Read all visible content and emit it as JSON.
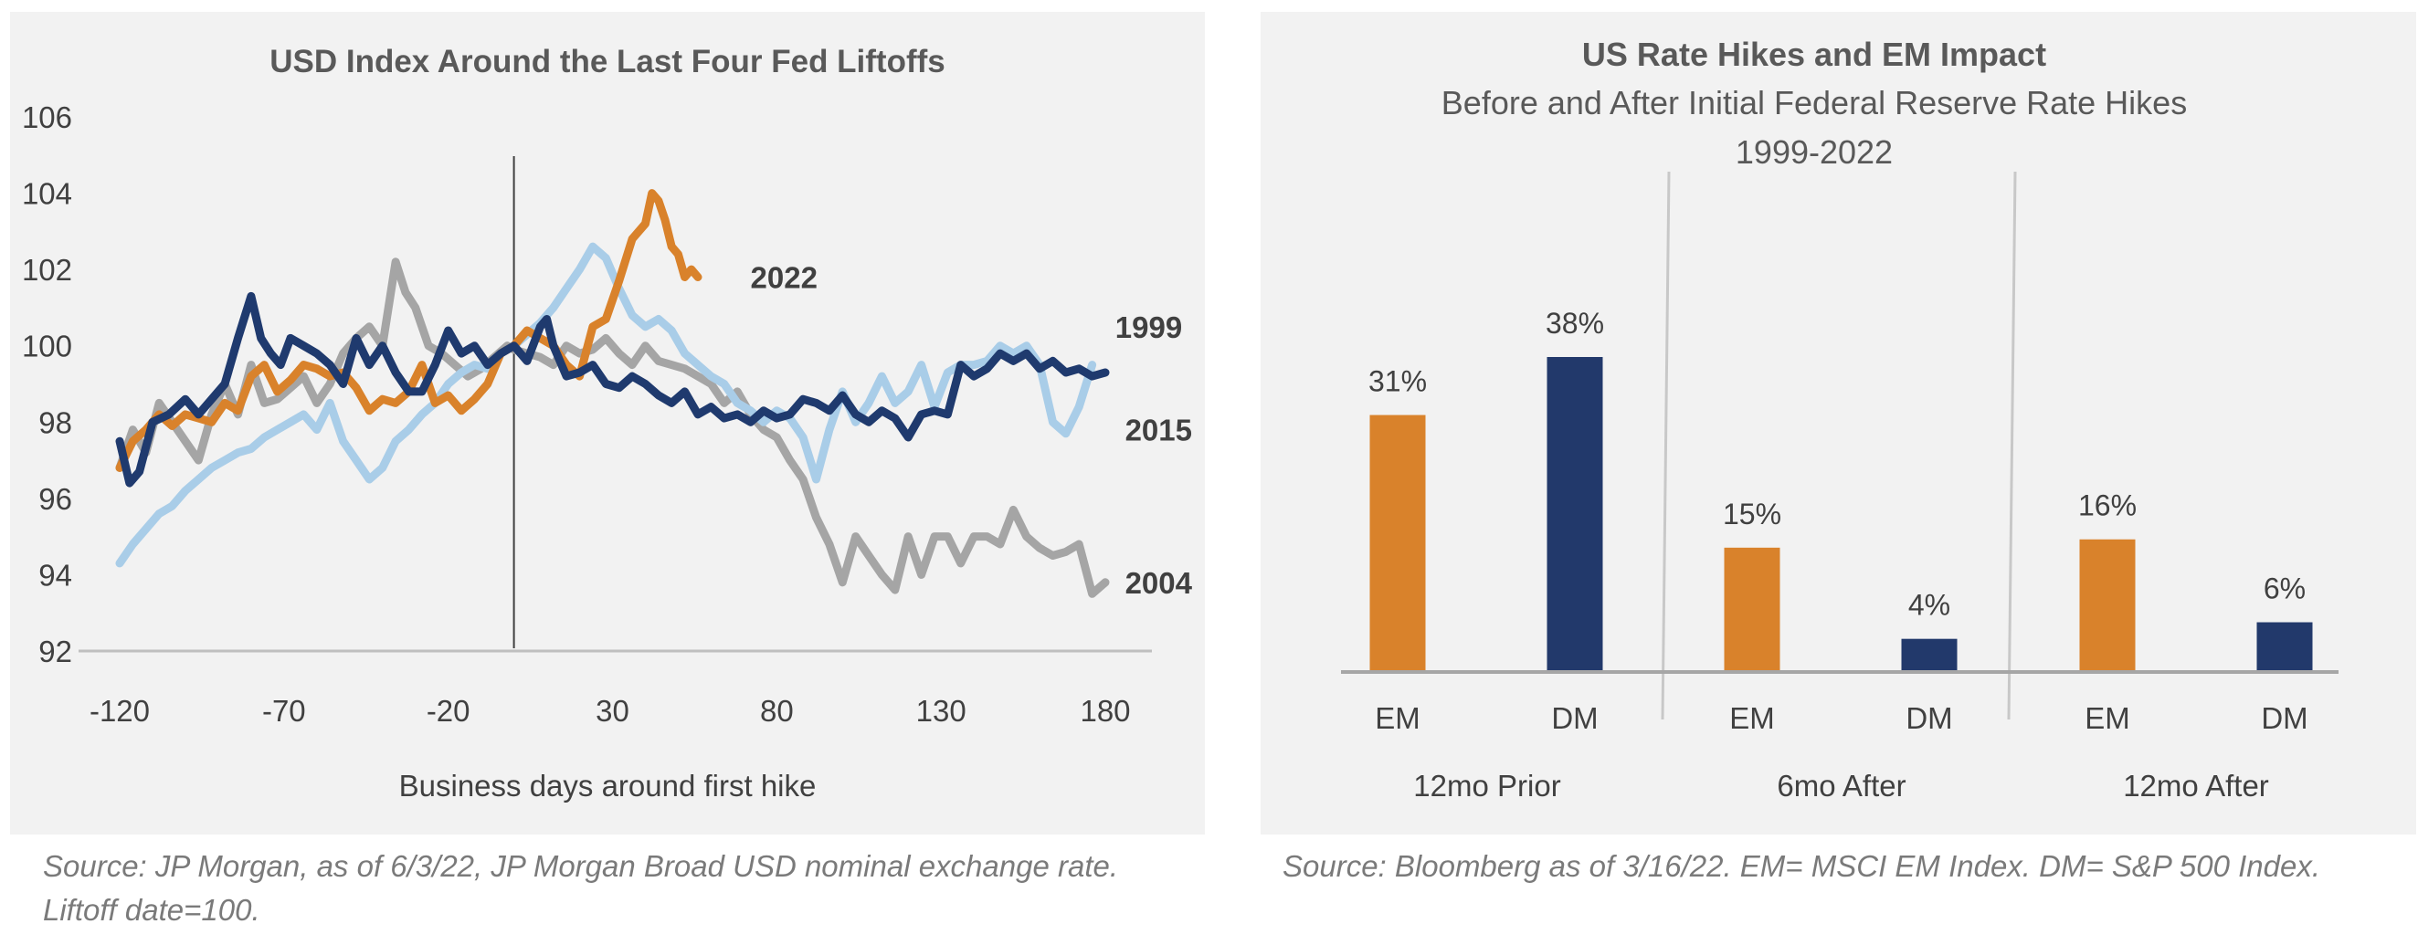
{
  "left_chart": {
    "source_line1": "Source: JP Morgan, as of 6/3/22, JP Morgan Broad USD nominal exchange rate.",
    "source_line2": "Liftoff date=100."
  },
  "right_chart": {
    "source": "Source: Bloomberg as of 3/16/22. EM= MSCI EM Index. DM= S&P 500 Index."
  },
  "colors": {
    "s1999": "#1f3a6e",
    "s2004": "#a5a5a5",
    "s2015": "#a9cde8",
    "s2022": "#d9822b",
    "em": "#d9822b",
    "dm": "#22396b",
    "text": "#404040",
    "axis": "#bfbfbf"
  },
  "chart_data": [
    {
      "type": "line",
      "title": "USD Index Around the Last Four Fed Liftoffs",
      "xlabel": "Business days around first hike",
      "ylabel": "",
      "xlim": [
        -120,
        200
      ],
      "ylim": [
        92,
        106
      ],
      "x_ticks": [
        -120,
        -70,
        -20,
        30,
        80,
        130,
        180
      ],
      "y_ticks": [
        92,
        94,
        96,
        98,
        100,
        102,
        104,
        106
      ],
      "grid": false,
      "liftoff_marker_x": 0,
      "series": [
        {
          "name": "1999",
          "color": "#1f3a6e",
          "label_at": [
            183,
            100.5
          ],
          "x": [
            -120,
            -117,
            -114,
            -110,
            -105,
            -100,
            -96,
            -92,
            -88,
            -84,
            -80,
            -77,
            -74,
            -71,
            -68,
            -64,
            -60,
            -56,
            -52,
            -48,
            -44,
            -40,
            -36,
            -32,
            -28,
            -24,
            -20,
            -16,
            -12,
            -8,
            -4,
            0,
            4,
            8,
            10,
            12,
            16,
            20,
            24,
            28,
            32,
            36,
            40,
            44,
            48,
            52,
            56,
            60,
            64,
            68,
            72,
            76,
            80,
            84,
            88,
            92,
            96,
            100,
            104,
            108,
            112,
            116,
            120,
            124,
            128,
            132,
            136,
            140,
            144,
            148,
            152,
            156,
            160,
            164,
            168,
            172,
            176,
            180
          ],
          "y": [
            97.5,
            96.4,
            96.7,
            98.0,
            98.2,
            98.6,
            98.2,
            98.6,
            99.0,
            100.2,
            101.3,
            100.2,
            99.8,
            99.5,
            100.2,
            100.0,
            99.8,
            99.5,
            99.0,
            100.2,
            99.5,
            100.0,
            99.3,
            98.8,
            98.8,
            99.5,
            100.4,
            99.8,
            100.0,
            99.5,
            99.8,
            100.0,
            99.6,
            100.5,
            100.7,
            100.0,
            99.2,
            99.3,
            99.5,
            99.0,
            98.9,
            99.2,
            99.0,
            98.7,
            98.5,
            98.8,
            98.2,
            98.4,
            98.1,
            98.2,
            98.0,
            98.3,
            98.1,
            98.2,
            98.6,
            98.5,
            98.3,
            98.7,
            98.2,
            98.0,
            98.3,
            98.1,
            97.6,
            98.2,
            98.3,
            98.2,
            99.5,
            99.2,
            99.4,
            99.8,
            99.6,
            99.8,
            99.4,
            99.6,
            99.3,
            99.4,
            99.2,
            99.3
          ]
        },
        {
          "name": "2004",
          "color": "#a5a5a5",
          "label_at": [
            186,
            93.8
          ],
          "x": [
            -120,
            -116,
            -112,
            -108,
            -104,
            -100,
            -96,
            -92,
            -88,
            -84,
            -80,
            -76,
            -72,
            -68,
            -64,
            -60,
            -56,
            -52,
            -48,
            -44,
            -40,
            -36,
            -33,
            -30,
            -26,
            -22,
            -18,
            -14,
            -10,
            -6,
            -2,
            0,
            4,
            8,
            12,
            16,
            20,
            24,
            28,
            32,
            36,
            40,
            44,
            48,
            52,
            56,
            60,
            64,
            68,
            72,
            76,
            80,
            84,
            88,
            92,
            96,
            100,
            104,
            108,
            112,
            116,
            120,
            124,
            128,
            132,
            136,
            140,
            144,
            148,
            152,
            156,
            160,
            164,
            168,
            172,
            176,
            180
          ],
          "y": [
            96.8,
            97.8,
            97.2,
            98.5,
            98.0,
            97.5,
            97.0,
            98.2,
            99.0,
            98.2,
            99.5,
            98.5,
            98.6,
            98.9,
            99.2,
            98.5,
            99.0,
            99.8,
            100.2,
            100.5,
            100.0,
            102.2,
            101.4,
            101.0,
            100.0,
            99.8,
            99.5,
            99.2,
            99.4,
            99.7,
            100.0,
            99.9,
            99.8,
            99.7,
            99.5,
            100.0,
            99.8,
            99.9,
            100.2,
            99.8,
            99.5,
            100.0,
            99.6,
            99.5,
            99.4,
            99.2,
            99.0,
            98.5,
            98.8,
            98.2,
            97.8,
            97.6,
            97.0,
            96.5,
            95.5,
            94.8,
            93.8,
            95.0,
            94.5,
            94.0,
            93.6,
            95.0,
            94.0,
            95.0,
            95.0,
            94.3,
            95.0,
            95.0,
            94.8,
            95.7,
            95.0,
            94.7,
            94.5,
            94.6,
            94.8,
            93.5,
            93.8
          ]
        },
        {
          "name": "2015",
          "color": "#a9cde8",
          "label_at": [
            186,
            97.8
          ],
          "x": [
            -120,
            -116,
            -112,
            -108,
            -104,
            -100,
            -96,
            -92,
            -88,
            -84,
            -80,
            -76,
            -72,
            -68,
            -64,
            -60,
            -56,
            -52,
            -48,
            -44,
            -40,
            -36,
            -32,
            -28,
            -24,
            -20,
            -16,
            -12,
            -8,
            -4,
            0,
            4,
            8,
            12,
            16,
            20,
            24,
            28,
            32,
            36,
            40,
            44,
            48,
            52,
            56,
            60,
            64,
            68,
            72,
            76,
            80,
            84,
            88,
            92,
            96,
            100,
            104,
            108,
            112,
            116,
            120,
            124,
            128,
            132,
            136,
            140,
            144,
            148,
            152,
            156,
            160,
            164,
            168,
            172,
            176
          ],
          "y": [
            94.3,
            94.8,
            95.2,
            95.6,
            95.8,
            96.2,
            96.5,
            96.8,
            97.0,
            97.2,
            97.3,
            97.6,
            97.8,
            98.0,
            98.2,
            97.8,
            98.5,
            97.5,
            97.0,
            96.5,
            96.8,
            97.5,
            97.8,
            98.2,
            98.5,
            99.0,
            99.3,
            99.5,
            99.4,
            99.8,
            100.0,
            100.3,
            100.6,
            101.0,
            101.5,
            102.0,
            102.6,
            102.3,
            101.5,
            100.8,
            100.5,
            100.7,
            100.4,
            99.8,
            99.5,
            99.2,
            99.0,
            98.5,
            98.3,
            98.0,
            98.3,
            98.1,
            97.6,
            96.5,
            97.8,
            98.8,
            98.0,
            98.5,
            99.2,
            98.5,
            98.8,
            99.5,
            98.4,
            99.3,
            99.5,
            99.5,
            99.6,
            100.0,
            99.8,
            100.0,
            99.5,
            98.0,
            97.7,
            98.4,
            99.5
          ]
        },
        {
          "name": "2022",
          "color": "#d9822b",
          "label_at": [
            72,
            101.8
          ],
          "x": [
            -120,
            -116,
            -112,
            -108,
            -104,
            -100,
            -96,
            -92,
            -88,
            -84,
            -80,
            -76,
            -72,
            -68,
            -64,
            -60,
            -56,
            -52,
            -48,
            -44,
            -40,
            -36,
            -32,
            -28,
            -24,
            -20,
            -16,
            -12,
            -8,
            -4,
            0,
            4,
            8,
            12,
            16,
            20,
            24,
            28,
            32,
            36,
            40,
            42,
            44,
            46,
            48,
            50,
            52,
            54,
            56
          ],
          "y": [
            96.8,
            97.5,
            97.8,
            98.2,
            97.9,
            98.2,
            98.1,
            98.0,
            98.5,
            98.3,
            99.2,
            99.5,
            98.8,
            99.1,
            99.5,
            99.4,
            99.2,
            99.3,
            98.9,
            98.3,
            98.6,
            98.5,
            98.8,
            99.5,
            98.5,
            98.7,
            98.3,
            98.6,
            99.0,
            99.8,
            100.0,
            100.4,
            100.2,
            100.0,
            99.5,
            99.2,
            100.5,
            100.7,
            101.7,
            102.8,
            103.2,
            104.0,
            103.8,
            103.3,
            102.6,
            102.4,
            101.8,
            102.0,
            101.8
          ]
        }
      ]
    },
    {
      "type": "bar",
      "title": "US Rate Hikes and EM Impact",
      "subtitle_line1": "Before and After Initial Federal Reserve Rate Hikes",
      "subtitle_line2": "1999-2022",
      "categories": [
        "EM",
        "DM",
        "EM",
        "DM",
        "EM",
        "DM"
      ],
      "groups": [
        "12mo Prior",
        "6mo After",
        "12mo After"
      ],
      "values": [
        31,
        38,
        15,
        4,
        16,
        6
      ],
      "data_labels": [
        "31%",
        "38%",
        "15%",
        "4%",
        "16%",
        "6%"
      ],
      "bar_colors": [
        "#d9822b",
        "#22396b",
        "#d9822b",
        "#22396b",
        "#d9822b",
        "#22396b"
      ],
      "ylim": [
        0,
        38
      ],
      "grid": false
    }
  ]
}
